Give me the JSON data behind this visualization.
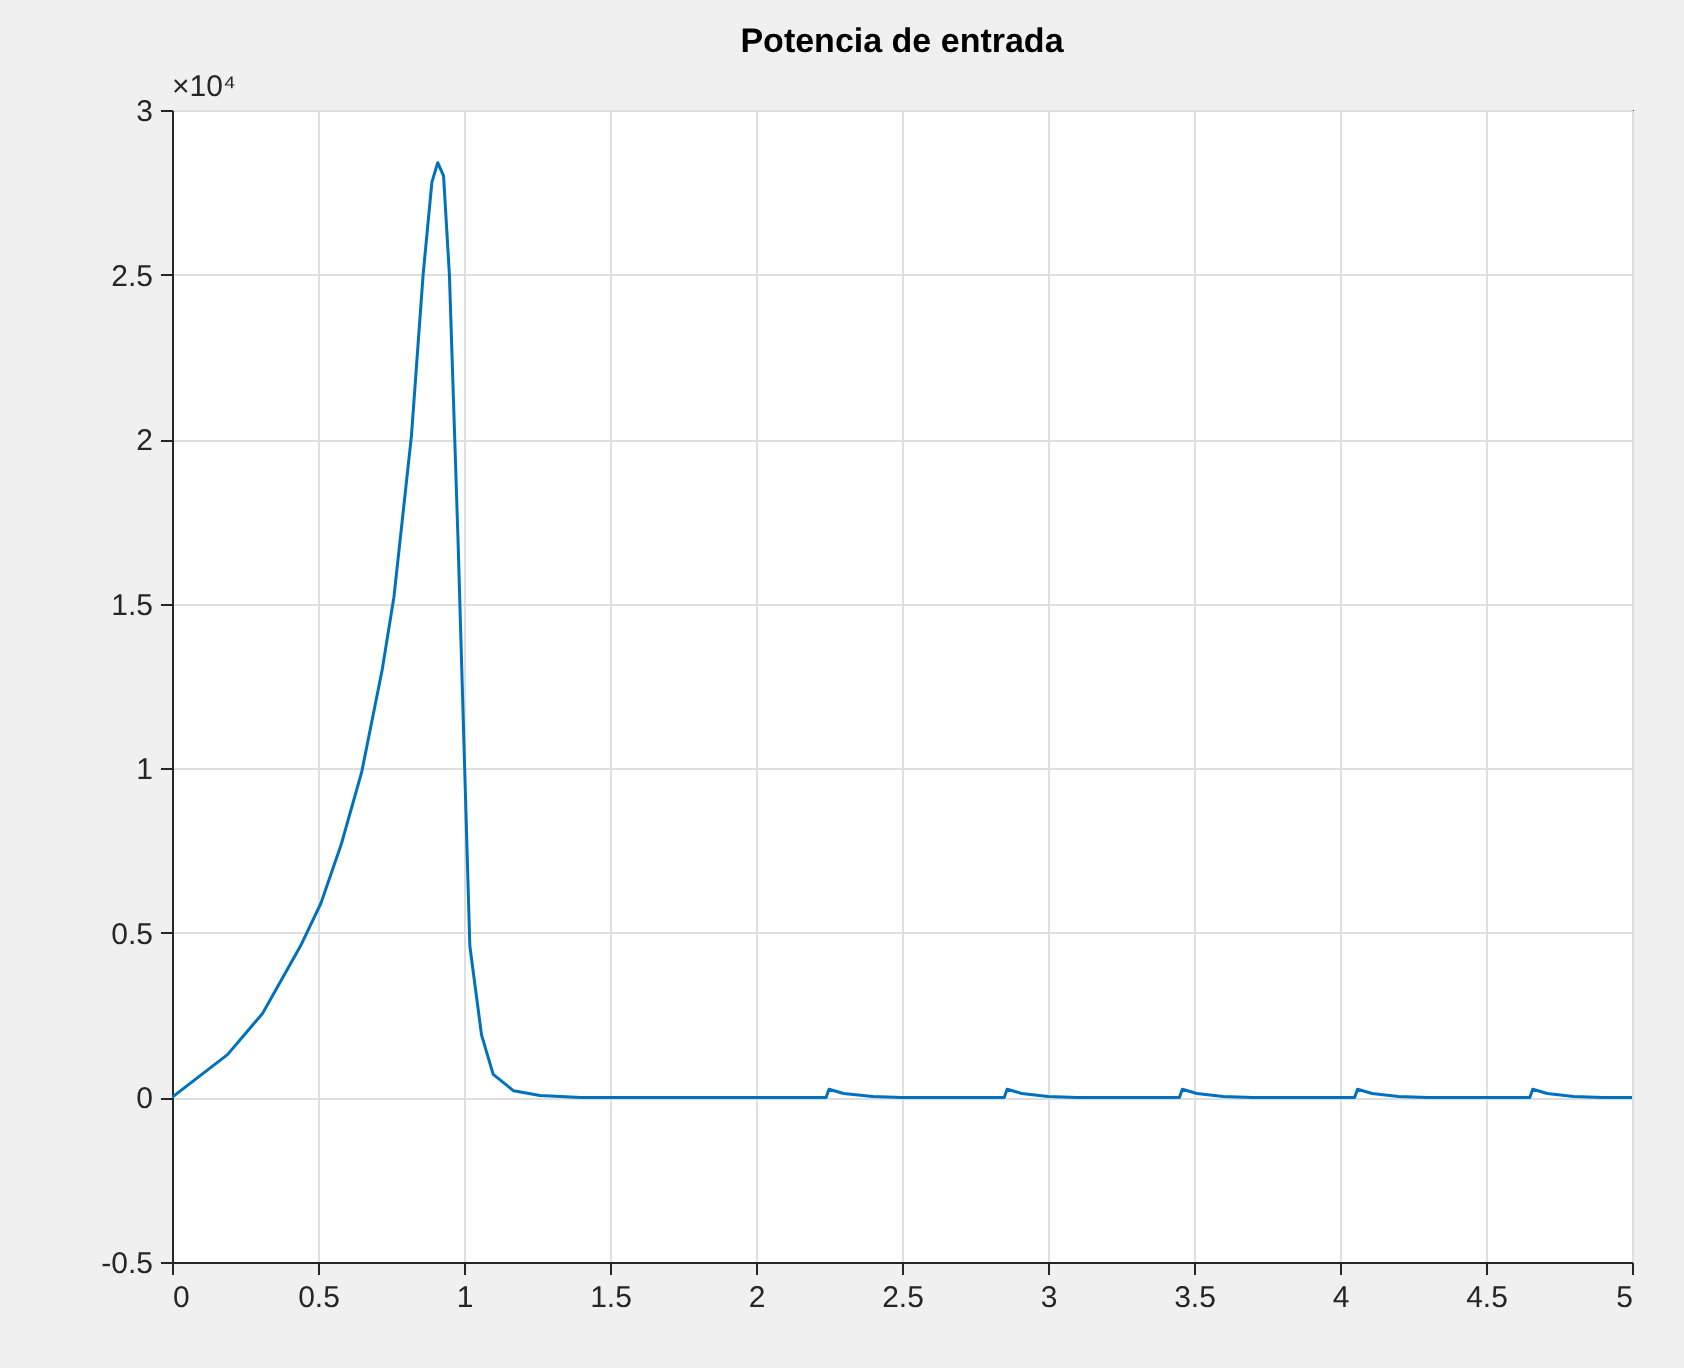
{
  "chart_data": {
    "type": "line",
    "title": "Potencia de entrada",
    "x": [
      0,
      0.19,
      0.31,
      0.44,
      0.51,
      0.58,
      0.65,
      0.72,
      0.76,
      0.82,
      0.86,
      0.89,
      0.91,
      0.93,
      0.95,
      0.98,
      1.0,
      1.02,
      1.06,
      1.1,
      1.17,
      1.26,
      1.4,
      2.24,
      2.25,
      2.3,
      2.4,
      2.5,
      2.85,
      2.86,
      2.91,
      3.0,
      3.1,
      3.45,
      3.46,
      3.51,
      3.6,
      3.7,
      4.05,
      4.06,
      4.11,
      4.2,
      4.3,
      4.65,
      4.66,
      4.71,
      4.8,
      4.9,
      5.0
    ],
    "series": [
      {
        "color": "#0072bd",
        "values": [
          0,
          0.13,
          0.255,
          0.46,
          0.59,
          0.77,
          0.99,
          1.3,
          1.52,
          2.01,
          2.5,
          2.78,
          2.84,
          2.8,
          2.5,
          1.68,
          1.07,
          0.46,
          0.19,
          0.07,
          0.02,
          0.006,
          0,
          0,
          0.025,
          0.012,
          0.003,
          0,
          0,
          0.025,
          0.012,
          0.003,
          0,
          0,
          0.025,
          0.012,
          0.003,
          0,
          0,
          0.025,
          0.012,
          0.003,
          0,
          0,
          0.025,
          0.012,
          0.003,
          0,
          0
        ]
      }
    ],
    "xlim": [
      0,
      5
    ],
    "xticks": [
      0,
      0.5,
      1,
      1.5,
      2,
      2.5,
      3,
      3.5,
      4,
      4.5,
      5
    ],
    "ylim": [
      -0.5,
      3
    ],
    "yticks": [
      -0.5,
      0,
      0.5,
      1,
      1.5,
      2,
      2.5,
      3
    ],
    "annotations": [
      "×10⁴"
    ],
    "grid": true
  }
}
